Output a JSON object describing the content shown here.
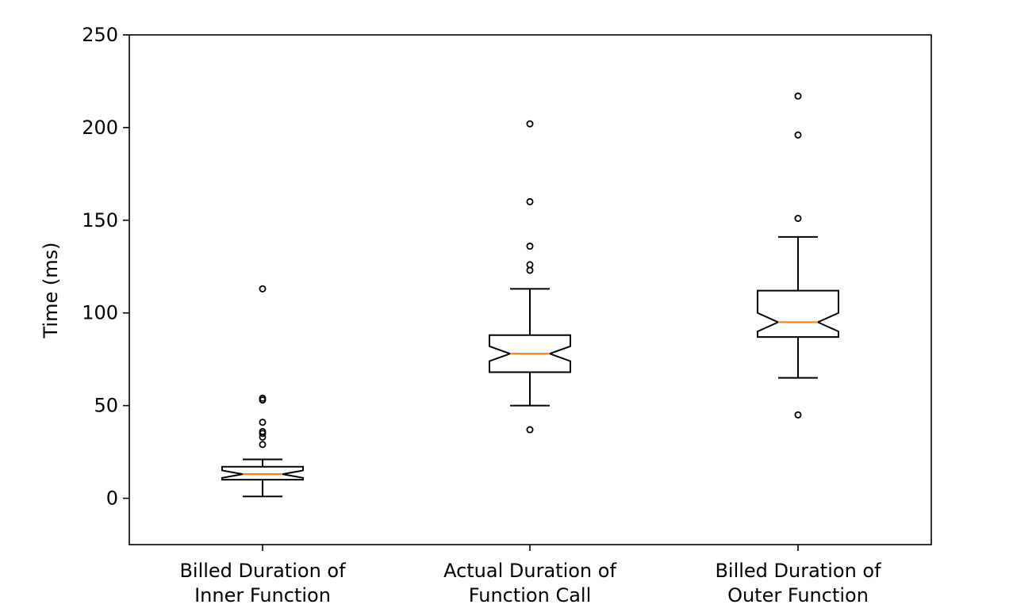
{
  "chart_data": {
    "type": "boxplot",
    "title": "",
    "xlabel": "",
    "ylabel": "Time (ms)",
    "ylim": [
      -25,
      250
    ],
    "yticks": [
      0,
      50,
      100,
      150,
      200,
      250
    ],
    "grid": false,
    "notched": true,
    "colors": {
      "box": "#000000",
      "median": "#ff7f0e",
      "background": "#ffffff"
    },
    "categories": [
      [
        "Billed Duration of",
        "Inner Function"
      ],
      [
        "Actual Duration of",
        "Function Call"
      ],
      [
        "Billed Duration of",
        "Outer Function"
      ]
    ],
    "boxes": [
      {
        "whisker_low": 1,
        "q1": 10,
        "median": 13,
        "q3": 17,
        "whisker_high": 21,
        "notch_low": 11,
        "notch_high": 15,
        "outliers": [
          29,
          33,
          35,
          36,
          41,
          53,
          54,
          113
        ]
      },
      {
        "whisker_low": 50,
        "q1": 68,
        "median": 78,
        "q3": 88,
        "whisker_high": 113,
        "notch_low": 74,
        "notch_high": 82,
        "outliers": [
          37,
          123,
          126,
          136,
          160,
          202
        ]
      },
      {
        "whisker_low": 65,
        "q1": 87,
        "median": 95,
        "q3": 112,
        "whisker_high": 141,
        "notch_low": 90,
        "notch_high": 100,
        "outliers": [
          45,
          151,
          196,
          217
        ]
      }
    ]
  }
}
